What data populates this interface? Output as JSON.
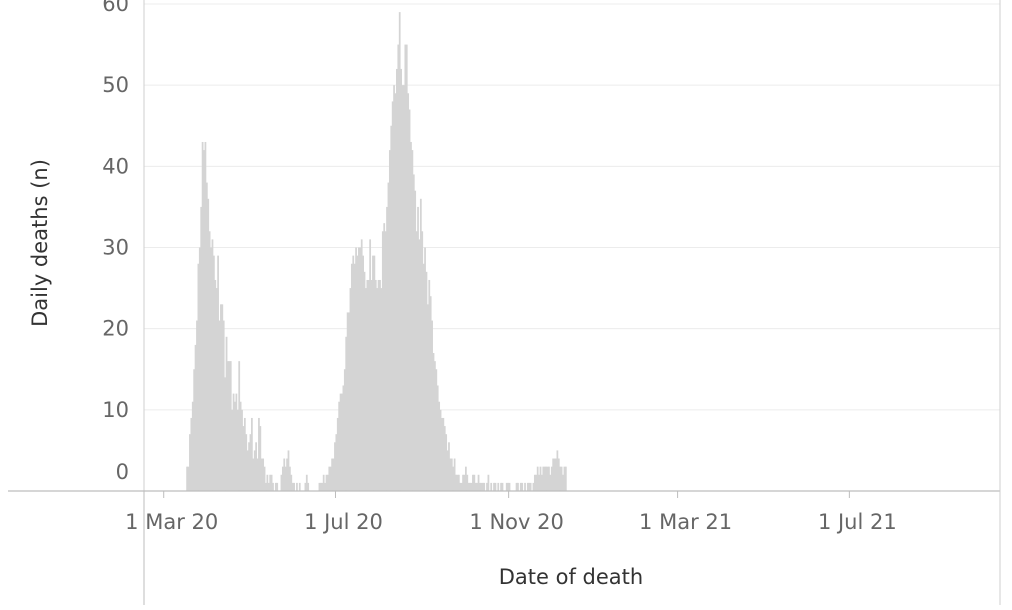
{
  "chart_data": {
    "type": "bar",
    "xlabel": "Date of death",
    "ylabel": "Daily deaths (n)",
    "ylim": [
      0,
      60
    ],
    "yticks": [
      0,
      10,
      20,
      30,
      40,
      50,
      60
    ],
    "xlim": [
      "2020-02-16",
      "2021-10-16"
    ],
    "xticks": [
      {
        "date": "2020-03-01",
        "label": "1 Mar 20"
      },
      {
        "date": "2020-07-01",
        "label": "1 Jul 20"
      },
      {
        "date": "2020-11-01",
        "label": "1 Nov 20"
      },
      {
        "date": "2021-03-01",
        "label": "1 Mar 21"
      },
      {
        "date": "2021-07-01",
        "label": "1 Jul 21"
      }
    ],
    "grid": true,
    "bar_color": "#d4d4d4",
    "series": [
      {
        "start_date": "2020-03-17",
        "values": [
          3,
          3,
          7,
          9,
          11,
          15,
          18,
          21,
          28,
          30,
          35,
          43,
          42,
          43,
          38,
          36,
          32,
          30,
          31,
          29,
          26,
          25,
          29,
          21,
          23,
          23,
          21,
          14,
          19,
          16,
          16,
          16,
          10,
          12,
          11,
          12,
          10,
          16,
          11,
          10,
          8,
          9,
          7,
          5,
          6,
          7,
          9,
          4,
          5,
          6,
          4,
          9,
          8,
          4,
          4,
          3,
          1,
          2,
          1,
          2,
          2,
          1,
          0,
          1,
          1,
          0,
          0,
          2,
          3,
          4,
          3,
          4,
          5,
          3,
          2,
          1,
          1,
          0,
          1,
          0,
          1,
          0,
          0,
          0,
          1,
          2,
          1,
          0,
          0,
          0,
          0,
          0,
          0,
          0,
          1,
          1,
          1,
          2,
          1,
          2,
          2,
          3,
          3,
          4,
          4,
          6,
          7,
          9,
          11,
          12,
          12,
          13,
          15,
          19,
          22,
          22,
          25,
          28,
          29,
          28,
          30,
          29,
          30,
          30,
          31,
          29,
          27,
          25,
          26,
          26,
          31,
          26,
          29,
          29,
          26,
          25,
          26,
          26,
          25,
          32,
          33,
          32,
          35,
          38,
          42,
          45,
          48,
          50,
          49,
          52,
          55,
          59,
          52,
          50,
          50,
          55,
          55,
          49,
          47,
          43,
          42,
          39,
          37,
          32,
          35,
          31,
          36,
          32,
          28,
          30,
          27,
          23,
          26,
          24,
          21,
          17,
          16,
          15,
          13,
          11,
          10,
          9,
          9,
          8,
          7,
          5,
          6,
          4,
          4,
          3,
          4,
          2,
          2,
          2,
          1,
          1,
          2,
          2,
          3,
          2,
          1,
          1,
          1,
          2,
          2,
          1,
          1,
          2,
          1,
          1,
          1,
          1,
          0,
          1,
          2,
          0,
          1,
          0,
          1,
          1,
          0,
          1,
          0,
          1,
          1,
          0,
          0,
          1,
          1,
          1,
          0,
          0,
          0,
          0,
          1,
          1,
          0,
          1,
          1,
          0,
          1,
          0,
          1,
          1,
          1,
          0,
          1,
          2,
          2,
          3,
          2,
          3,
          2,
          3,
          3,
          3,
          3,
          3,
          2,
          3,
          4,
          4,
          4,
          5,
          4,
          3,
          3,
          2,
          3,
          3
        ]
      }
    ]
  }
}
